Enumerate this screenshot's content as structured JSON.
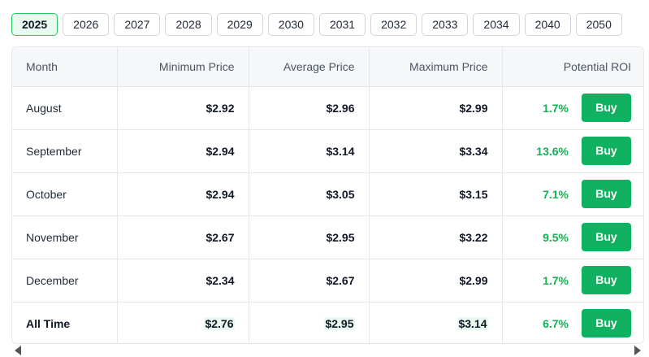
{
  "year_tabs": [
    "2025",
    "2026",
    "2027",
    "2028",
    "2029",
    "2030",
    "2031",
    "2032",
    "2033",
    "2034",
    "2040",
    "2050"
  ],
  "active_year": "2025",
  "table": {
    "headers": {
      "month": "Month",
      "min": "Minimum Price",
      "avg": "Average Price",
      "max": "Maximum Price",
      "roi": "Potential ROI"
    },
    "buy_label": "Buy",
    "rows": [
      {
        "month": "August",
        "min": "$2.92",
        "avg": "$2.96",
        "max": "$2.99",
        "roi": "1.7%"
      },
      {
        "month": "September",
        "min": "$2.94",
        "avg": "$3.14",
        "max": "$3.34",
        "roi": "13.6%"
      },
      {
        "month": "October",
        "min": "$2.94",
        "avg": "$3.05",
        "max": "$3.15",
        "roi": "7.1%"
      },
      {
        "month": "November",
        "min": "$2.67",
        "avg": "$2.95",
        "max": "$3.22",
        "roi": "9.5%"
      },
      {
        "month": "December",
        "min": "$2.34",
        "avg": "$2.67",
        "max": "$2.99",
        "roi": "1.7%"
      },
      {
        "month": "All Time",
        "min": "$2.76",
        "avg": "$2.95",
        "max": "$3.14",
        "roi": "6.7%"
      }
    ]
  },
  "colors": {
    "accent_green": "#10b160",
    "roi_green": "#16b153",
    "active_tab_bg": "#e9f9ef"
  }
}
